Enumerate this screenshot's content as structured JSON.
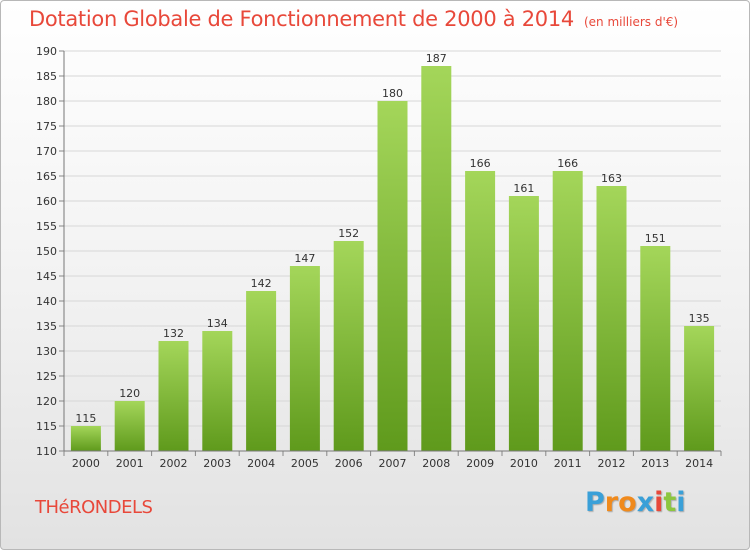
{
  "chart_data": {
    "type": "bar",
    "title": "Dotation Globale de Fonctionnement de 2000 à 2014",
    "subtitle": "(en milliers d'€)",
    "categories": [
      "2000",
      "2001",
      "2002",
      "2003",
      "2004",
      "2005",
      "2006",
      "2007",
      "2008",
      "2009",
      "2010",
      "2011",
      "2012",
      "2013",
      "2014"
    ],
    "values": [
      115,
      120,
      132,
      134,
      142,
      147,
      152,
      180,
      187,
      166,
      161,
      166,
      163,
      151,
      135
    ],
    "xlabel": "",
    "ylabel": "",
    "ylim": [
      110,
      190
    ],
    "yticks": [
      110,
      115,
      120,
      125,
      130,
      135,
      140,
      145,
      150,
      155,
      160,
      165,
      170,
      175,
      180,
      185,
      190
    ],
    "grid": true,
    "bar_color_top": "#a4d65a",
    "bar_color_bottom": "#5f9a1c"
  },
  "footer": {
    "commune": "THéRONDELS"
  },
  "logo": {
    "text": "Proxiti",
    "letters": [
      "P",
      "r",
      "o",
      "x",
      "i",
      "t",
      "i"
    ],
    "colors": [
      "#3aa0d8",
      "#f08a1c",
      "#f08a1c",
      "#3aa0d8",
      "#e8483a",
      "#8cc63f",
      "#3aa0d8"
    ]
  }
}
